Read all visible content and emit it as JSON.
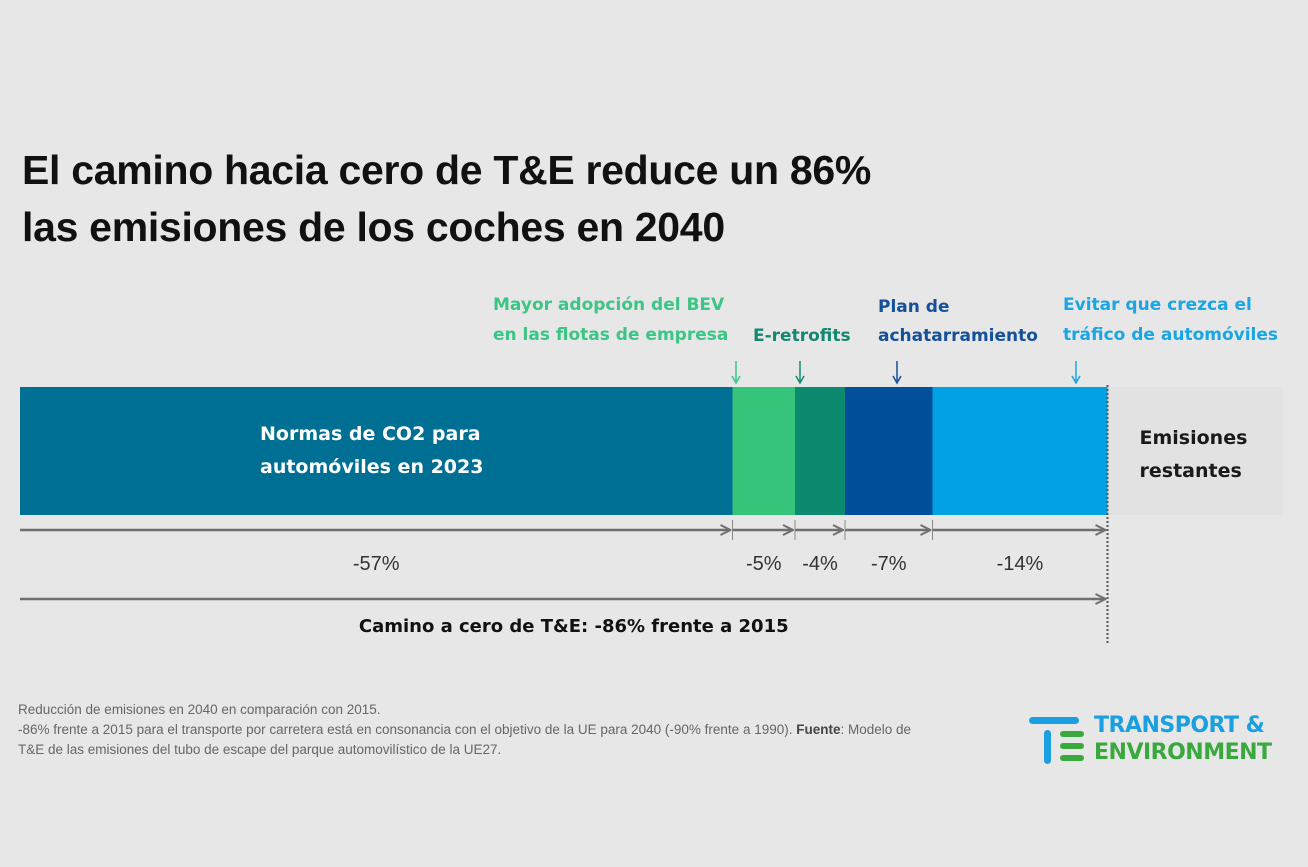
{
  "title": {
    "line1": "El camino hacia cero de T&E reduce un 86%",
    "line2": "las emisiones de los coches en 2040"
  },
  "chart_data": {
    "type": "bar",
    "orientation": "horizontal-stacked-waterfall",
    "title": "El camino hacia cero de T&E reduce un 86% las emisiones de los coches en 2040",
    "unit": "% reducción de emisiones 2040 vs 2015",
    "segments": [
      {
        "id": "co2",
        "label_lines": [
          "Normas de CO2 para",
          "automóviles en 2023"
        ],
        "value": -57,
        "display": "-57%",
        "color": "#006f94",
        "label_position": "inside"
      },
      {
        "id": "bev",
        "label_lines": [
          "Mayor adopción del BEV",
          "en las flotas de empresa"
        ],
        "value": -5,
        "display": "-5%",
        "color": "#35c47a",
        "label_color": "#3cc584",
        "label_position": "above"
      },
      {
        "id": "retro",
        "label_lines": [
          "E-retrofits"
        ],
        "value": -4,
        "display": "-4%",
        "color": "#0b8a6f",
        "label_color": "#13876f",
        "label_position": "above"
      },
      {
        "id": "scrap",
        "label_lines": [
          "Plan de",
          "achatarramiento"
        ],
        "value": -7,
        "display": "-7%",
        "color": "#014f9a",
        "label_color": "#15509a",
        "label_position": "above"
      },
      {
        "id": "traffic",
        "label_lines": [
          "Evitar que crezca el",
          "tráfico de automóviles"
        ],
        "value": -14,
        "display": "-14%",
        "color": "#00a2e4",
        "label_color": "#1aa6e2",
        "label_position": "above"
      }
    ],
    "remaining": {
      "label_lines": [
        "Emisiones",
        "restantes"
      ],
      "value": 14,
      "color": "#e2e2e2"
    },
    "total": {
      "value": -86,
      "label": "Camino a cero de T&E: -86% frente a 2015"
    },
    "scale_max": 100
  },
  "notes": {
    "line1": "Reducción de emisiones en 2040 en comparación con 2015.",
    "line2_pre": "-86% frente a 2015 para el transporte por carretera está en consonancia con el objetivo de la UE para 2040 (-90% frente a 1990).",
    "source_label": "Fuente",
    "source_text": ": Modelo de T&E de las emisiones del tubo de escape del parque automovilístico de la UE27."
  },
  "logo": {
    "line1": "TRANSPORT &",
    "line2": "ENVIRONMENT",
    "color1": "#1a9fe0",
    "color2": "#3aa93d"
  }
}
